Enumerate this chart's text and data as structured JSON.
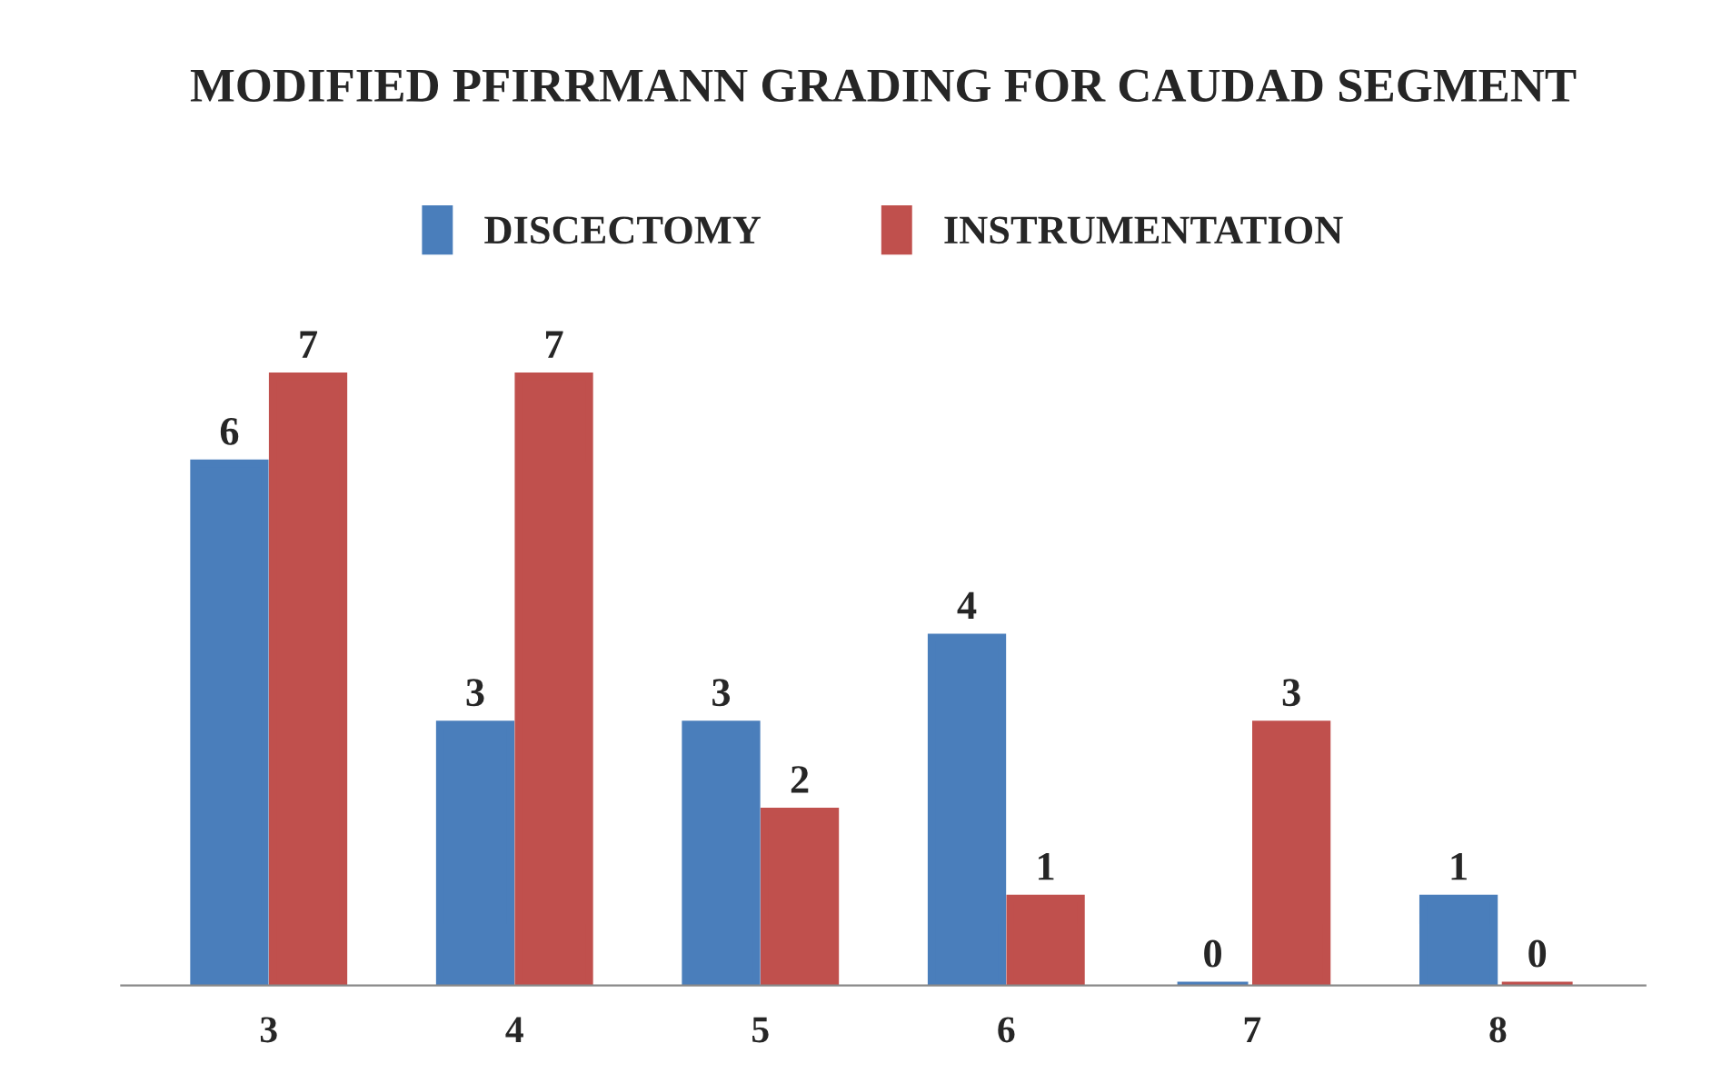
{
  "chart_data": {
    "type": "bar",
    "title": "MODIFIED PFIRRMANN GRADING FOR CAUDAD SEGMENT",
    "categories": [
      "3",
      "4",
      "5",
      "6",
      "7",
      "8"
    ],
    "series": [
      {
        "name": "DISCECTOMY",
        "color": "#4a7ebb",
        "values": [
          6,
          3,
          3,
          4,
          0,
          1
        ]
      },
      {
        "name": "INSTRUMENTATION",
        "color": "#c0504d",
        "values": [
          7,
          7,
          2,
          1,
          3,
          0
        ]
      }
    ],
    "data_labels": true,
    "legend": "top",
    "grid": false
  }
}
